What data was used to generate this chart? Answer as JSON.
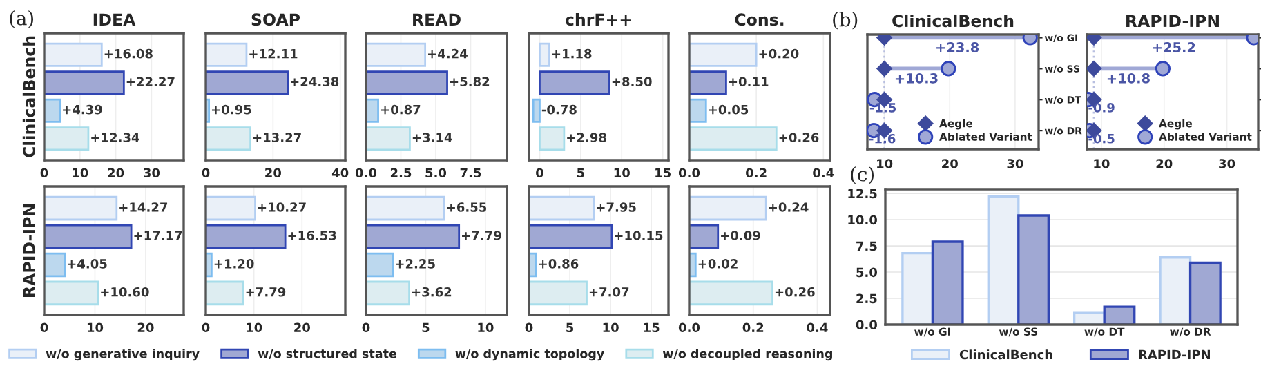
{
  "chart_data": [
    {
      "type": "bar",
      "orientation": "horizontal",
      "title": "IDEA",
      "ylabel": "ClinicalBench",
      "annotations": [
        "(a)"
      ],
      "categories": [
        null
      ],
      "legend": "bottom",
      "series": [
        {
          "name": "w/o generative inquiry",
          "color": "#eaf0f8",
          "values": [
            16.08
          ],
          "value_labels": [
            "+16.08"
          ]
        },
        {
          "name": "w/o structured state",
          "color": "#a0a8d3",
          "values": [
            22.27
          ],
          "value_labels": [
            "+22.27"
          ]
        },
        {
          "name": "w/o dynamic topology",
          "color": "#bcd8ee",
          "values": [
            4.39
          ],
          "value_labels": [
            "+4.39"
          ]
        },
        {
          "name": "w/o decoupled reasoning",
          "color": "#ddedf1",
          "values": [
            12.34
          ],
          "value_labels": [
            "+12.34"
          ]
        }
      ],
      "xlim": [
        0,
        39
      ],
      "xticks": [
        0,
        10,
        20,
        30
      ],
      "grid": "x",
      "tick_labels": "x"
    },
    {
      "type": "bar",
      "orientation": "horizontal",
      "title": "SOAP",
      "categories": [
        null
      ],
      "series": [
        {
          "name": "w/o generative inquiry",
          "color": "#eaf0f8",
          "values": [
            12.11
          ],
          "value_labels": [
            "+12.11"
          ]
        },
        {
          "name": "w/o structured state",
          "color": "#a0a8d3",
          "values": [
            24.38
          ],
          "value_labels": [
            "+24.38"
          ]
        },
        {
          "name": "w/o dynamic topology",
          "color": "#bcd8ee",
          "values": [
            0.95
          ],
          "value_labels": [
            "+0.95"
          ]
        },
        {
          "name": "w/o decoupled reasoning",
          "color": "#ddedf1",
          "values": [
            13.27
          ],
          "value_labels": [
            "+13.27"
          ]
        }
      ],
      "xlim": [
        0,
        41.5
      ],
      "xticks": [
        0,
        20,
        40
      ],
      "grid": "x",
      "tick_labels": "x"
    },
    {
      "type": "bar",
      "orientation": "horizontal",
      "title": "READ",
      "categories": [
        null
      ],
      "series": [
        {
          "name": "w/o generative inquiry",
          "color": "#eaf0f8",
          "values": [
            4.24
          ],
          "value_labels": [
            "+4.24"
          ]
        },
        {
          "name": "w/o structured state",
          "color": "#a0a8d3",
          "values": [
            5.82
          ],
          "value_labels": [
            "+5.82"
          ]
        },
        {
          "name": "w/o dynamic topology",
          "color": "#bcd8ee",
          "values": [
            0.87
          ],
          "value_labels": [
            "+0.87"
          ]
        },
        {
          "name": "w/o decoupled reasoning",
          "color": "#ddedf1",
          "values": [
            3.14
          ],
          "value_labels": [
            "+3.14"
          ]
        }
      ],
      "xlim": [
        0,
        10.1
      ],
      "xticks": [
        {
          "value": 0,
          "label": "0.0"
        },
        {
          "value": 2.5,
          "label": "2.5"
        },
        {
          "value": 5,
          "label": "5.0"
        },
        {
          "value": 7.5,
          "label": "7.5"
        }
      ],
      "grid": "x",
      "tick_labels": "x"
    },
    {
      "type": "bar",
      "orientation": "horizontal",
      "title": "chrF++",
      "categories": [
        null
      ],
      "series": [
        {
          "name": "w/o generative inquiry",
          "color": "#eaf0f8",
          "values": [
            1.18
          ],
          "value_labels": [
            "+1.18"
          ]
        },
        {
          "name": "w/o structured state",
          "color": "#a0a8d3",
          "values": [
            8.5
          ],
          "value_labels": [
            "+8.50"
          ]
        },
        {
          "name": "w/o dynamic topology",
          "color": "#bcd8ee",
          "values": [
            -0.78
          ],
          "value_labels": [
            "-0.78"
          ]
        },
        {
          "name": "w/o decoupled reasoning",
          "color": "#ddedf1",
          "values": [
            2.98
          ],
          "value_labels": [
            "+2.98"
          ]
        }
      ],
      "xlim": [
        -1.3,
        15.7
      ],
      "xticks": [
        0,
        5,
        10,
        15
      ],
      "grid": "x",
      "tick_labels": "x"
    },
    {
      "type": "bar",
      "orientation": "horizontal",
      "title": "Cons.",
      "categories": [
        null
      ],
      "series": [
        {
          "name": "w/o generative inquiry",
          "color": "#eaf0f8",
          "values": [
            0.2
          ],
          "value_labels": [
            "+0.20"
          ]
        },
        {
          "name": "w/o structured state",
          "color": "#a0a8d3",
          "values": [
            0.11
          ],
          "value_labels": [
            "+0.11"
          ]
        },
        {
          "name": "w/o dynamic topology",
          "color": "#bcd8ee",
          "values": [
            0.05
          ],
          "value_labels": [
            "+0.05"
          ]
        },
        {
          "name": "w/o decoupled reasoning",
          "color": "#ddedf1",
          "values": [
            0.26
          ],
          "value_labels": [
            "+0.26"
          ]
        }
      ],
      "xlim": [
        0,
        0.42
      ],
      "xticks": [
        {
          "value": 0,
          "label": "0.0"
        },
        {
          "value": 0.2,
          "label": "0.2"
        },
        {
          "value": 0.4,
          "label": "0.4"
        }
      ],
      "grid": "x",
      "tick_labels": "x"
    },
    {
      "type": "bar",
      "orientation": "horizontal",
      "ylabel": "RAPID-IPN",
      "categories": [
        null
      ],
      "series": [
        {
          "name": "w/o generative inquiry",
          "color": "#eaf0f8",
          "values": [
            14.27
          ],
          "value_labels": [
            "+14.27"
          ]
        },
        {
          "name": "w/o structured state",
          "color": "#a0a8d3",
          "values": [
            17.17
          ],
          "value_labels": [
            "+17.17"
          ]
        },
        {
          "name": "w/o dynamic topology",
          "color": "#bcd8ee",
          "values": [
            4.05
          ],
          "value_labels": [
            "+4.05"
          ]
        },
        {
          "name": "w/o decoupled reasoning",
          "color": "#ddedf1",
          "values": [
            10.6
          ],
          "value_labels": [
            "+10.60"
          ]
        }
      ],
      "xlim": [
        0,
        27.5
      ],
      "xticks": [
        0,
        10,
        20
      ],
      "grid": "x",
      "tick_labels": "x"
    },
    {
      "type": "bar",
      "orientation": "horizontal",
      "categories": [
        null
      ],
      "series": [
        {
          "name": "w/o generative inquiry",
          "color": "#eaf0f8",
          "values": [
            10.27
          ],
          "value_labels": [
            "+10.27"
          ]
        },
        {
          "name": "w/o structured state",
          "color": "#a0a8d3",
          "values": [
            16.53
          ],
          "value_labels": [
            "+16.53"
          ]
        },
        {
          "name": "w/o dynamic topology",
          "color": "#bcd8ee",
          "values": [
            1.2
          ],
          "value_labels": [
            "+1.20"
          ]
        },
        {
          "name": "w/o decoupled reasoning",
          "color": "#ddedf1",
          "values": [
            7.79
          ],
          "value_labels": [
            "+7.79"
          ]
        }
      ],
      "xlim": [
        0,
        29
      ],
      "xticks": [
        0,
        10,
        20
      ],
      "grid": "x",
      "tick_labels": "x"
    },
    {
      "type": "bar",
      "orientation": "horizontal",
      "categories": [
        null
      ],
      "series": [
        {
          "name": "w/o generative inquiry",
          "color": "#eaf0f8",
          "values": [
            6.55
          ],
          "value_labels": [
            "+6.55"
          ]
        },
        {
          "name": "w/o structured state",
          "color": "#a0a8d3",
          "values": [
            7.79
          ],
          "value_labels": [
            "+7.79"
          ]
        },
        {
          "name": "w/o dynamic topology",
          "color": "#bcd8ee",
          "values": [
            2.25
          ],
          "value_labels": [
            "+2.25"
          ]
        },
        {
          "name": "w/o decoupled reasoning",
          "color": "#ddedf1",
          "values": [
            3.62
          ],
          "value_labels": [
            "+3.62"
          ]
        }
      ],
      "xlim": [
        0,
        11.8
      ],
      "xticks": [
        0,
        5,
        10
      ],
      "grid": "x",
      "tick_labels": "x"
    },
    {
      "type": "bar",
      "orientation": "horizontal",
      "categories": [
        null
      ],
      "series": [
        {
          "name": "w/o generative inquiry",
          "color": "#eaf0f8",
          "values": [
            7.95
          ],
          "value_labels": [
            "+7.95"
          ]
        },
        {
          "name": "w/o structured state",
          "color": "#a0a8d3",
          "values": [
            10.15
          ],
          "value_labels": [
            "+10.15"
          ]
        },
        {
          "name": "w/o dynamic topology",
          "color": "#bcd8ee",
          "values": [
            0.86
          ],
          "value_labels": [
            "+0.86"
          ]
        },
        {
          "name": "w/o decoupled reasoning",
          "color": "#ddedf1",
          "values": [
            7.07
          ],
          "value_labels": [
            "+7.07"
          ]
        }
      ],
      "xlim": [
        0,
        17.1
      ],
      "xticks": [
        0,
        5,
        10,
        15
      ],
      "grid": "x",
      "tick_labels": "x"
    },
    {
      "type": "bar",
      "orientation": "horizontal",
      "categories": [
        null
      ],
      "series": [
        {
          "name": "w/o generative inquiry",
          "color": "#eaf0f8",
          "values": [
            0.24
          ],
          "value_labels": [
            "+0.24"
          ]
        },
        {
          "name": "w/o structured state",
          "color": "#a0a8d3",
          "values": [
            0.09
          ],
          "value_labels": [
            "+0.09"
          ]
        },
        {
          "name": "w/o dynamic topology",
          "color": "#bcd8ee",
          "values": [
            0.02
          ],
          "value_labels": [
            "+0.02"
          ]
        },
        {
          "name": "w/o decoupled reasoning",
          "color": "#ddedf1",
          "values": [
            0.26
          ],
          "value_labels": [
            "+0.26"
          ]
        }
      ],
      "xlim": [
        0,
        0.44
      ],
      "xticks": [
        {
          "value": 0,
          "label": "0.0"
        },
        {
          "value": 0.2,
          "label": "0.2"
        },
        {
          "value": 0.4,
          "label": "0.4"
        }
      ],
      "grid": "x",
      "tick_labels": "x"
    },
    {
      "type": "scatter",
      "orientation": "horizontal",
      "title": "ClinicalBench",
      "categories": [
        "w/o GI",
        "w/o SS",
        "w/o DT",
        "w/o DR"
      ],
      "series": [
        {
          "name": "Aegle",
          "color": "#3d4a9c",
          "marker": "diamond",
          "values": [
            10.0,
            10.0,
            10.0,
            10.0
          ]
        },
        {
          "name": "Ablated Variant",
          "color": "#a0a8d6",
          "marker": "circle",
          "values": [
            32.3,
            19.8,
            8.5,
            8.4
          ]
        }
      ],
      "annotations": [
        "+23.8",
        "+10.3",
        {
          "text": "-1.5",
          "x": 8.5,
          "y": "w/o DT"
        },
        {
          "text": "-1.6",
          "x": 8.4,
          "y": "w/o DR"
        },
        "(b)"
      ],
      "ref_lines": [
        {
          "axis": "x",
          "value": 10.0,
          "color": "#b8bfe0",
          "line_style": "dotted"
        }
      ],
      "xlim": [
        7.4,
        33.6
      ],
      "xticks": [
        10,
        20,
        30
      ],
      "grid": "x",
      "legend": "lower right"
    },
    {
      "type": "scatter",
      "orientation": "horizontal",
      "title": "RAPID-IPN",
      "categories": [
        "w/o GI",
        "w/o SS",
        "w/o DT",
        "w/o DR"
      ],
      "series": [
        {
          "name": "Aegle",
          "color": "#3d4a9c",
          "marker": "diamond",
          "values": [
            8.8,
            8.8,
            8.8,
            8.8
          ]
        },
        {
          "name": "Ablated Variant",
          "color": "#a0a8d6",
          "marker": "circle",
          "values": [
            34.3,
            19.8,
            7.9,
            8.1
          ]
        }
      ],
      "annotations": [
        "+25.2",
        "+10.8",
        {
          "text": "-0.9",
          "x": 7.9,
          "y": "w/o DT"
        },
        {
          "text": "-0.5",
          "x": 8.1,
          "y": "w/o DR"
        }
      ],
      "ref_lines": [
        {
          "axis": "x",
          "value": 8.8,
          "color": "#b8bfe0",
          "line_style": "dotted"
        }
      ],
      "xlim": [
        7.7,
        35.0
      ],
      "xticks": [
        10,
        20,
        30
      ],
      "grid": "x",
      "legend": "lower right",
      "tick_labels": "x"
    },
    {
      "type": "bar",
      "annotations": [
        "(c)"
      ],
      "categories": [
        "w/o GI",
        "w/o SS",
        "w/o DT",
        "w/o DR"
      ],
      "series": [
        {
          "name": "ClinicalBench",
          "color": "#eaf0f8",
          "values": [
            6.8,
            12.2,
            1.1,
            6.4
          ]
        },
        {
          "name": "RAPID-IPN",
          "color": "#a0a8d3",
          "values": [
            7.9,
            10.4,
            1.7,
            5.9
          ]
        }
      ],
      "ylim": [
        0,
        12.9
      ],
      "yticks": [
        {
          "value": 0,
          "label": "0.0"
        },
        {
          "value": 2.5,
          "label": "2.5"
        },
        {
          "value": 5,
          "label": "5.0"
        },
        {
          "value": 7.5,
          "label": "7.5"
        },
        {
          "value": 10,
          "label": "10.0"
        },
        {
          "value": 12.5,
          "label": "12.5"
        }
      ],
      "grid": "y",
      "legend": "bottom"
    }
  ]
}
